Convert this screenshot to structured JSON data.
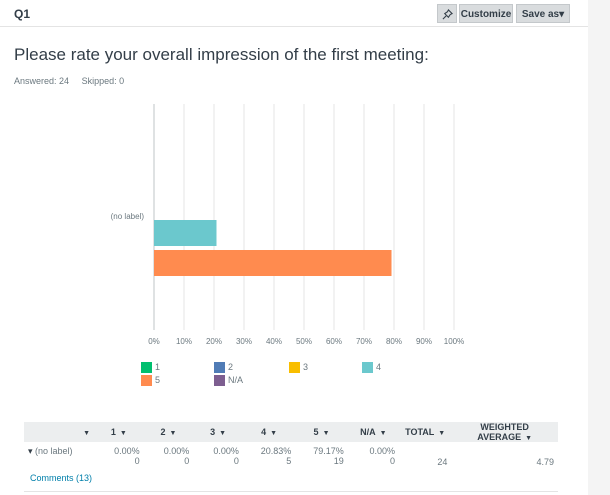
{
  "question": {
    "number": "Q1",
    "title": "Please rate your overall impression of the first meeting:",
    "answered": "Answered: 24",
    "skipped": "Skipped: 0"
  },
  "toolbar": {
    "pin_icon": "pin-icon",
    "customize_label": "Customize",
    "save_label": "Save as▾"
  },
  "chart_data": {
    "type": "bar",
    "orientation": "horizontal",
    "categories": [
      "(no label)"
    ],
    "series": [
      {
        "name": "4",
        "values": [
          20.83
        ],
        "color": "#6bc8cd"
      },
      {
        "name": "5",
        "values": [
          79.17
        ],
        "color": "#ff8b4f"
      }
    ],
    "xlim": [
      0,
      100
    ],
    "xticks": [
      "0%",
      "10%",
      "20%",
      "30%",
      "40%",
      "50%",
      "60%",
      "70%",
      "80%",
      "90%",
      "100%"
    ],
    "grid": true,
    "legend_position": "bottom",
    "legend": [
      {
        "label": "1",
        "color": "#00bf6f"
      },
      {
        "label": "2",
        "color": "#507cb6"
      },
      {
        "label": "3",
        "color": "#f9be00"
      },
      {
        "label": "4",
        "color": "#6bc8cd"
      },
      {
        "label": "5",
        "color": "#ff8b4f"
      },
      {
        "label": "N/A",
        "color": "#7d5e90"
      }
    ]
  },
  "table": {
    "headers": [
      "1",
      "2",
      "3",
      "4",
      "5",
      "N/A",
      "TOTAL",
      "WEIGHTED AVERAGE"
    ],
    "row": {
      "label": "(no label)",
      "percents": [
        "0.00%",
        "0.00%",
        "0.00%",
        "20.83%",
        "79.17%",
        "0.00%"
      ],
      "counts": [
        "0",
        "0",
        "0",
        "5",
        "19",
        "0"
      ],
      "total": "24",
      "weighted_average": "4.79"
    }
  },
  "comments_label": "Comments (13)"
}
